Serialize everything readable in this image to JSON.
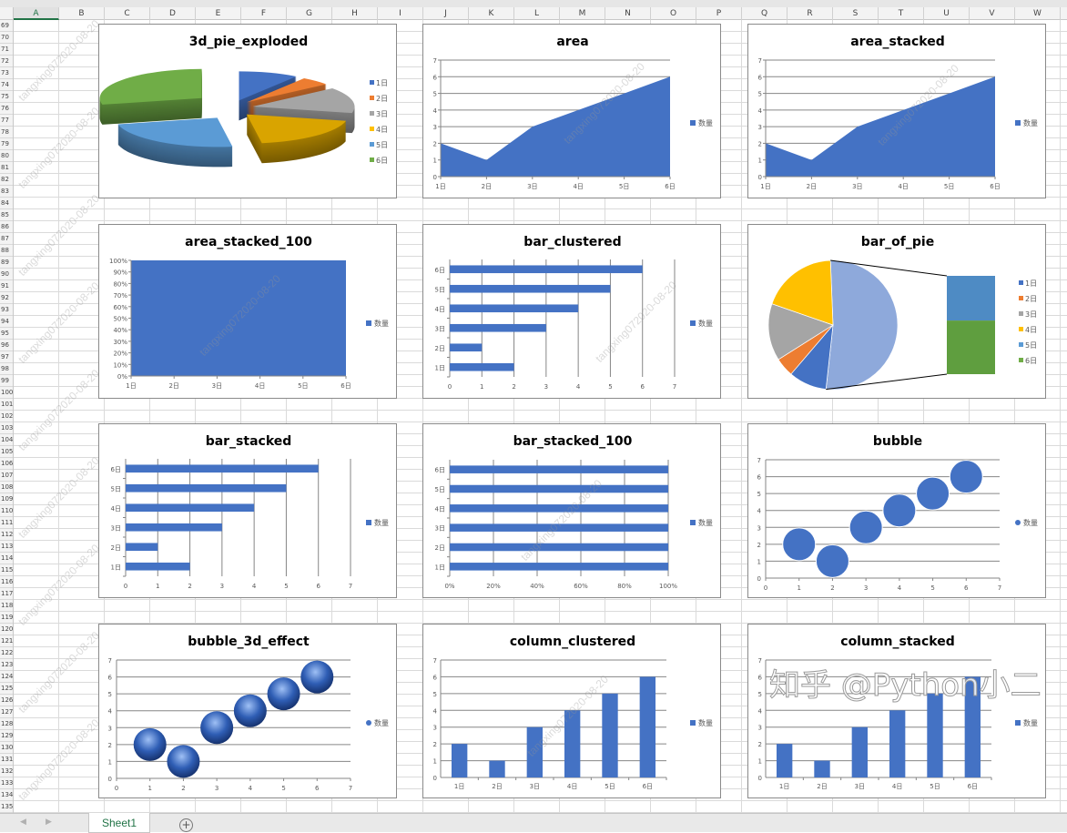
{
  "sheet": {
    "columns": [
      "A",
      "B",
      "C",
      "D",
      "E",
      "F",
      "G",
      "H",
      "I",
      "J",
      "K",
      "L",
      "M",
      "N",
      "O",
      "P",
      "Q",
      "R",
      "S",
      "T",
      "U",
      "V",
      "W"
    ],
    "rows": [
      "69",
      "70",
      "71",
      "72",
      "73",
      "74",
      "75",
      "76",
      "77",
      "78",
      "79",
      "80",
      "81",
      "82",
      "83",
      "84",
      "85",
      "86",
      "87",
      "88",
      "89",
      "90",
      "91",
      "92",
      "93",
      "94",
      "95",
      "96",
      "97",
      "98",
      "99",
      "100",
      "101",
      "102",
      "103",
      "104",
      "105",
      "106",
      "107",
      "108",
      "109",
      "110",
      "111",
      "112",
      "113",
      "114",
      "115",
      "116",
      "117",
      "118",
      "119",
      "120",
      "121",
      "122",
      "123",
      "124",
      "125",
      "126",
      "127",
      "128",
      "129",
      "130",
      "131",
      "132",
      "133",
      "134",
      "135"
    ],
    "selected_column": "A",
    "tab_label": "Sheet1",
    "add_sheet_icon": "plus-circle-icon",
    "nav_prev_icon": "chevron-left-icon",
    "nav_next_icon": "chevron-right-icon",
    "watermark": "tangxing072020-08-20",
    "overlay_watermark": "知乎 @Python小二"
  },
  "colors": {
    "series": "#4472c4",
    "pie": [
      "#4472c4",
      "#ed7d31",
      "#a5a5a5",
      "#ffc000",
      "#5b9bd5",
      "#70ad47"
    ],
    "other_slice": "#8ea9db",
    "grid": "#868686",
    "tab_accent": "#217346"
  },
  "chart_data": [
    {
      "title": "3d_pie_exploded",
      "type": "pie",
      "variant": "3d_exploded",
      "categories": [
        "1日",
        "2日",
        "3日",
        "4日",
        "5日",
        "6日"
      ],
      "values": [
        2,
        1,
        3,
        4,
        5,
        6
      ],
      "legend": [
        "1日",
        "2日",
        "3日",
        "4日",
        "5日",
        "6日"
      ]
    },
    {
      "title": "area",
      "type": "area",
      "categories": [
        "1日",
        "2日",
        "3日",
        "4日",
        "5日",
        "6日"
      ],
      "values": [
        2,
        1,
        3,
        4,
        5,
        6
      ],
      "ylim": [
        0,
        7
      ],
      "y_ticks": [
        "0",
        "1",
        "2",
        "3",
        "4",
        "5",
        "6",
        "7"
      ],
      "grid": true,
      "legend": [
        "数量"
      ],
      "legend_position": "right"
    },
    {
      "title": "area_stacked",
      "type": "area",
      "variant": "stacked",
      "categories": [
        "1日",
        "2日",
        "3日",
        "4日",
        "5日",
        "6日"
      ],
      "values": [
        2,
        1,
        3,
        4,
        5,
        6
      ],
      "ylim": [
        0,
        7
      ],
      "y_ticks": [
        "0",
        "1",
        "2",
        "3",
        "4",
        "5",
        "6",
        "7"
      ],
      "grid": true,
      "legend": [
        "数量"
      ],
      "legend_position": "right"
    },
    {
      "title": "area_stacked_100",
      "type": "area",
      "variant": "stacked_100",
      "categories": [
        "1日",
        "2日",
        "3日",
        "4日",
        "5日",
        "6日"
      ],
      "values": [
        2,
        1,
        3,
        4,
        5,
        6
      ],
      "ylim": [
        0,
        100
      ],
      "y_ticks": [
        "0%",
        "10%",
        "20%",
        "30%",
        "40%",
        "50%",
        "60%",
        "70%",
        "80%",
        "90%",
        "100%"
      ],
      "grid": false,
      "legend": [
        "数量"
      ],
      "legend_position": "right"
    },
    {
      "title": "bar_clustered",
      "type": "bar",
      "categories": [
        "1日",
        "2日",
        "3日",
        "4日",
        "5日",
        "6日"
      ],
      "values": [
        2,
        1,
        3,
        4,
        5,
        6
      ],
      "xlim": [
        0,
        7
      ],
      "x_ticks": [
        "0",
        "1",
        "2",
        "3",
        "4",
        "5",
        "6",
        "7"
      ],
      "grid": true,
      "legend": [
        "数量"
      ],
      "legend_position": "right"
    },
    {
      "title": "bar_of_pie",
      "type": "pie",
      "variant": "bar_of_pie",
      "categories": [
        "1日",
        "2日",
        "3日",
        "4日",
        "5日",
        "6日"
      ],
      "values": [
        2,
        1,
        3,
        4,
        5,
        6
      ],
      "legend": [
        "1日",
        "2日",
        "3日",
        "4日",
        "5日",
        "6日"
      ]
    },
    {
      "title": "bar_stacked",
      "type": "bar",
      "variant": "stacked",
      "categories": [
        "1日",
        "2日",
        "3日",
        "4日",
        "5日",
        "6日"
      ],
      "values": [
        2,
        1,
        3,
        4,
        5,
        6
      ],
      "xlim": [
        0,
        7
      ],
      "x_ticks": [
        "0",
        "1",
        "2",
        "3",
        "4",
        "5",
        "6",
        "7"
      ],
      "grid": true,
      "legend": [
        "数量"
      ],
      "legend_position": "right"
    },
    {
      "title": "bar_stacked_100",
      "type": "bar",
      "variant": "stacked_100",
      "categories": [
        "1日",
        "2日",
        "3日",
        "4日",
        "5日",
        "6日"
      ],
      "values": [
        2,
        1,
        3,
        4,
        5,
        6
      ],
      "xlim": [
        0,
        100
      ],
      "x_ticks": [
        "0%",
        "20%",
        "40%",
        "60%",
        "80%",
        "100%"
      ],
      "grid": true,
      "legend": [
        "数量"
      ],
      "legend_position": "right"
    },
    {
      "title": "bubble",
      "type": "scatter",
      "variant": "bubble",
      "x": [
        1,
        2,
        3,
        4,
        5,
        6
      ],
      "values": [
        2,
        1,
        3,
        4,
        5,
        6
      ],
      "xlim": [
        0,
        7
      ],
      "ylim": [
        0,
        7
      ],
      "x_ticks": [
        "0",
        "1",
        "2",
        "3",
        "4",
        "5",
        "6",
        "7"
      ],
      "y_ticks": [
        "0",
        "1",
        "2",
        "3",
        "4",
        "5",
        "6",
        "7"
      ],
      "grid": true,
      "legend": [
        "数量"
      ],
      "legend_position": "right"
    },
    {
      "title": "bubble_3d_effect",
      "type": "scatter",
      "variant": "bubble_3d",
      "x": [
        1,
        2,
        3,
        4,
        5,
        6
      ],
      "values": [
        2,
        1,
        3,
        4,
        5,
        6
      ],
      "xlim": [
        0,
        7
      ],
      "ylim": [
        0,
        7
      ],
      "x_ticks": [
        "0",
        "1",
        "2",
        "3",
        "4",
        "5",
        "6",
        "7"
      ],
      "y_ticks": [
        "0",
        "1",
        "2",
        "3",
        "4",
        "5",
        "6",
        "7"
      ],
      "grid": true,
      "legend": [
        "数量"
      ],
      "legend_position": "right"
    },
    {
      "title": "column_clustered",
      "type": "column",
      "categories": [
        "1日",
        "2日",
        "3日",
        "4日",
        "5日",
        "6日"
      ],
      "values": [
        2,
        1,
        3,
        4,
        5,
        6
      ],
      "ylim": [
        0,
        7
      ],
      "y_ticks": [
        "0",
        "1",
        "2",
        "3",
        "4",
        "5",
        "6",
        "7"
      ],
      "grid": true,
      "legend": [
        "数量"
      ],
      "legend_position": "right"
    },
    {
      "title": "column_stacked",
      "type": "column",
      "variant": "stacked",
      "categories": [
        "1日",
        "2日",
        "3日",
        "4日",
        "5日",
        "6日"
      ],
      "values": [
        2,
        1,
        3,
        4,
        5,
        6
      ],
      "ylim": [
        0,
        7
      ],
      "y_ticks": [
        "0",
        "1",
        "2",
        "3",
        "4",
        "5",
        "6",
        "7"
      ],
      "grid": true,
      "legend": [
        "数量"
      ],
      "legend_position": "right"
    }
  ]
}
